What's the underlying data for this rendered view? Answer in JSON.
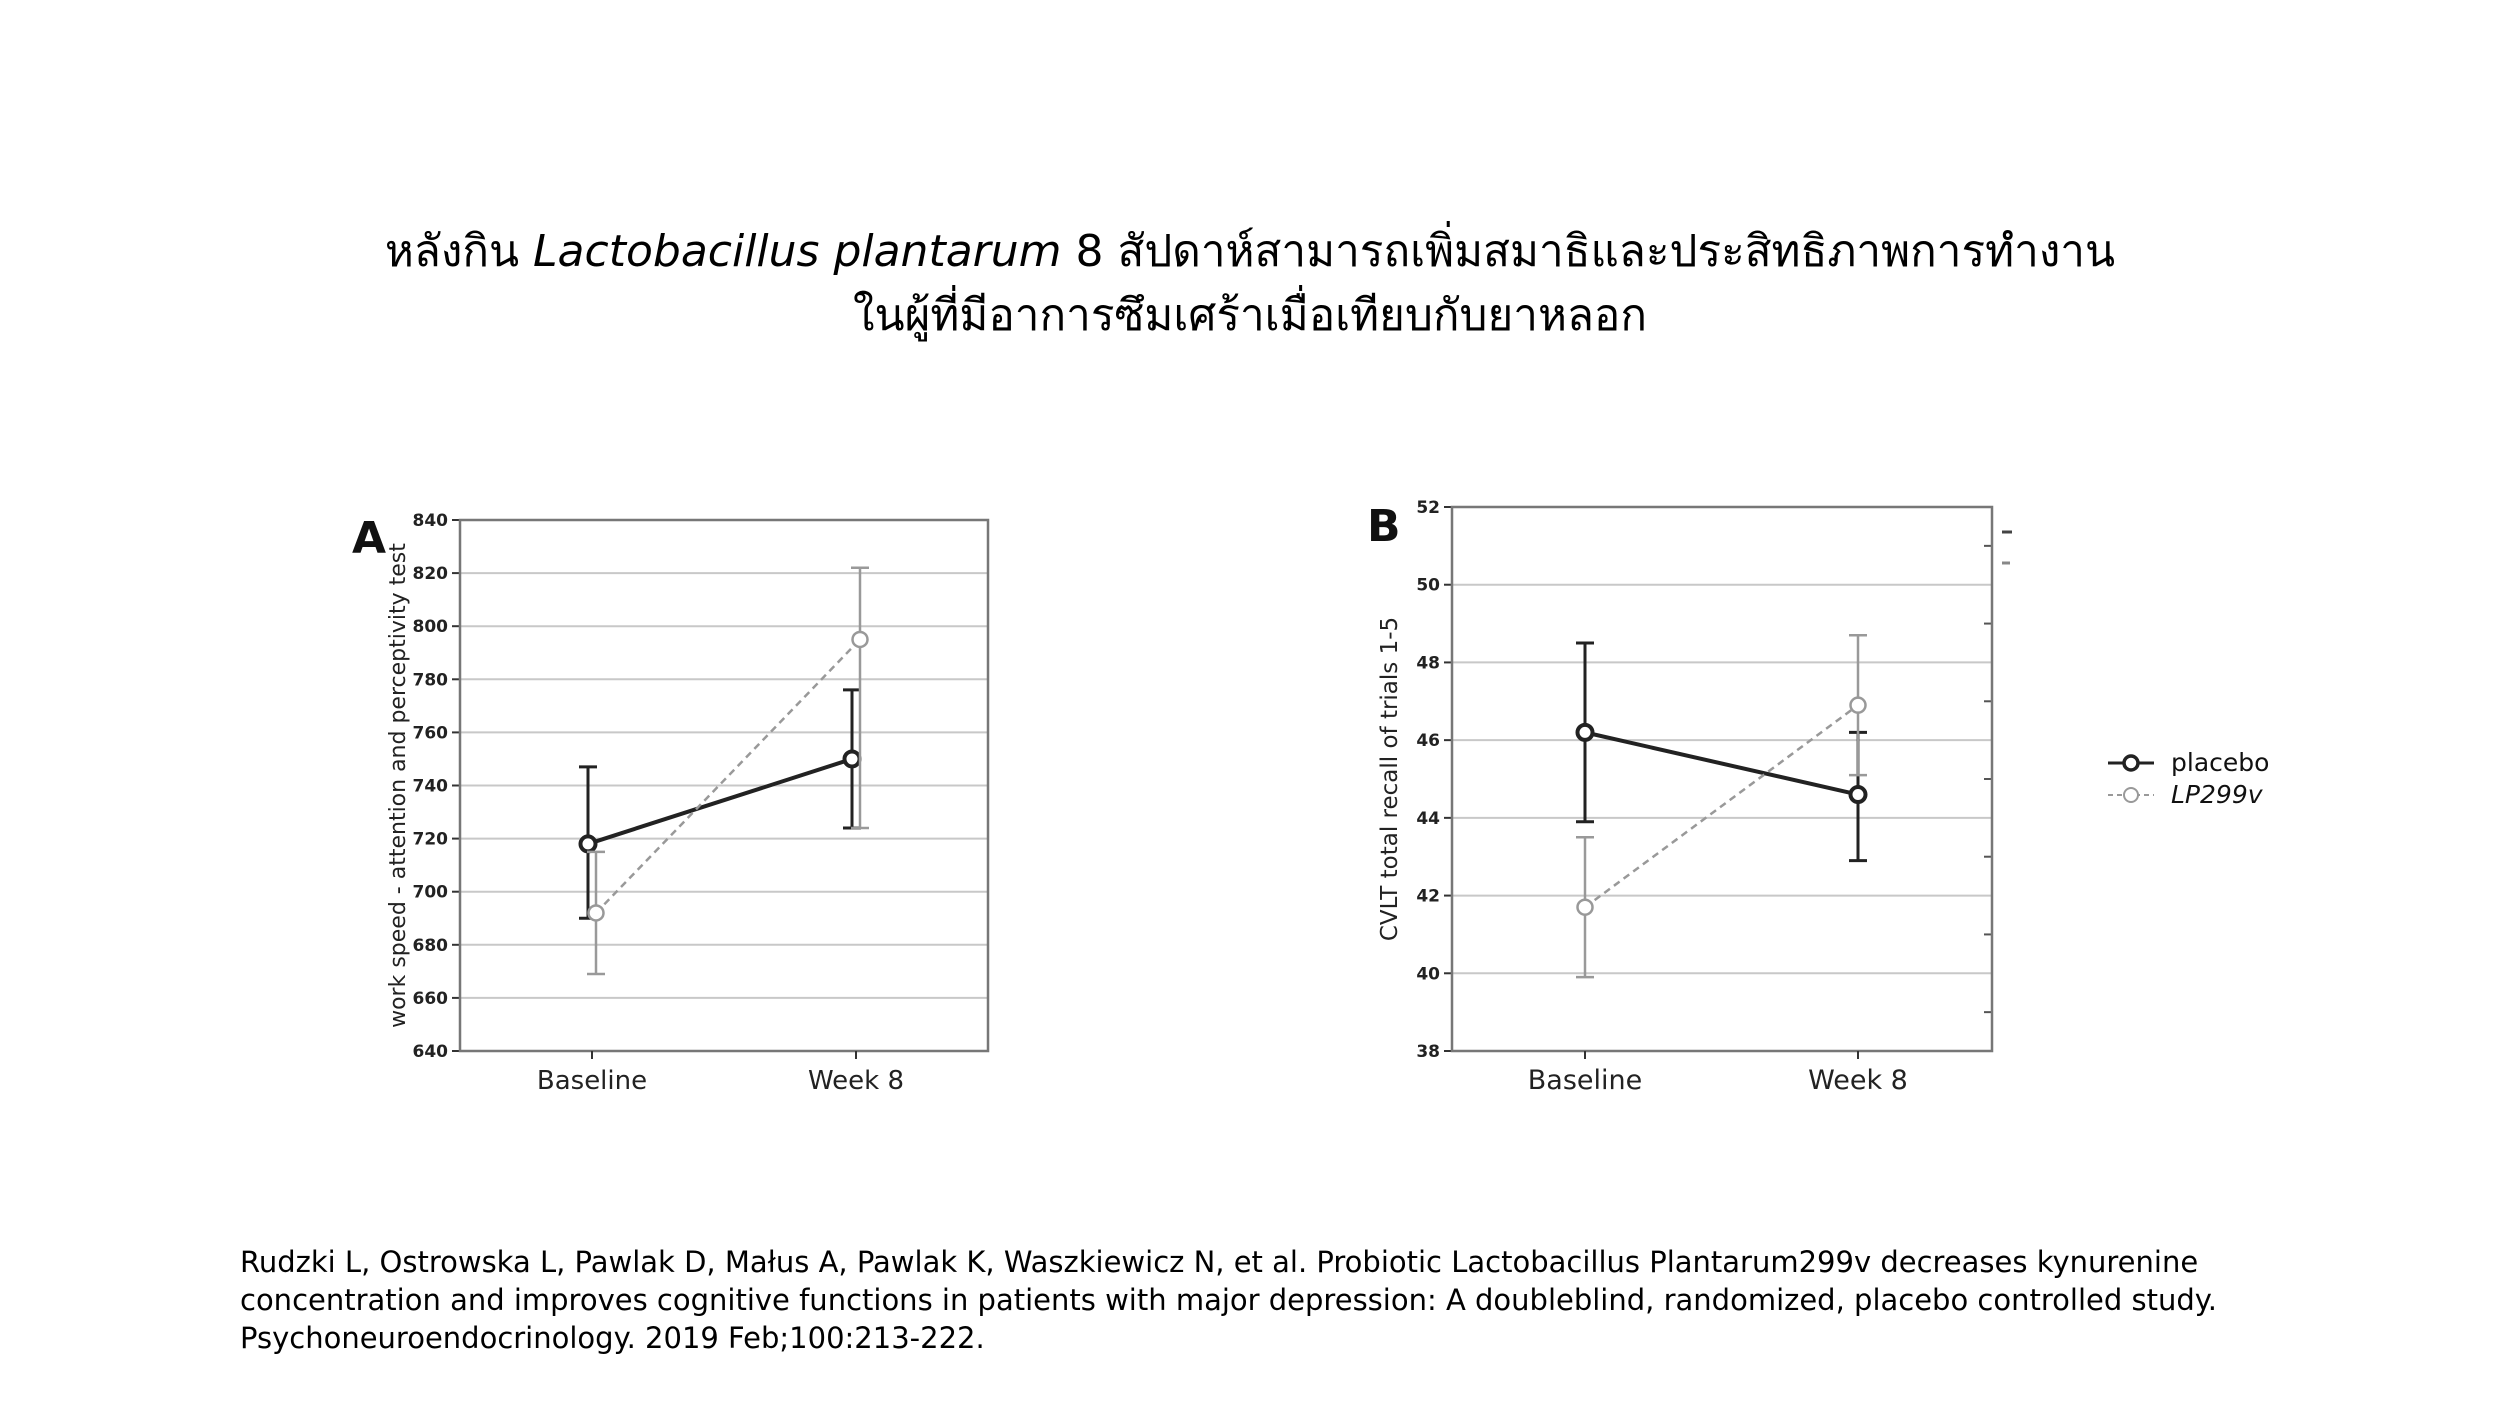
{
  "title": {
    "part1": "หลังกิน ",
    "species": "Lactobacillus plantarum",
    "part2": " 8 สัปดาห์สามารถเพิ่มสมาธิและประสิทธิภาพการทำงาน",
    "line2": "ในผู้ที่มีอาการซึมเศร้าเมื่อเทียบกับยาหลอก"
  },
  "reference": {
    "line1": "Rudzki L, Ostrowska L, Pawlak D, Małus A, Pawlak K, Waszkiewicz N,   et al. Probiotic Lactobacillus Plantarum299v decreases kynurenine",
    "line2": "concentration and improves cognitive functions in patients with major depression: A doubleblind, randomized, placebo controlled study.",
    "line3": "Psychoneuroendocrinology. 2019 Feb;100:213-222."
  },
  "colors": {
    "placebo": "#222222",
    "lp299v": "#999999",
    "grid": "#c8c8c8",
    "frame": "#777777"
  },
  "chart_data": [
    {
      "type": "line",
      "panel": "A",
      "categories": [
        "Baseline",
        "Week 8"
      ],
      "ylabel": "work speed - attention and perceptivity test",
      "ylim": [
        640,
        840
      ],
      "yticks": [
        640,
        660,
        680,
        700,
        720,
        740,
        760,
        780,
        800,
        820,
        840
      ],
      "grid": true,
      "series": [
        {
          "name": "placebo",
          "style": "solid",
          "values": [
            718,
            750
          ],
          "err_low": [
            690,
            724
          ],
          "err_high": [
            747,
            776
          ]
        },
        {
          "name": "LP299v",
          "style": "dashed",
          "values": [
            692,
            795
          ],
          "err_low": [
            669,
            724
          ],
          "err_high": [
            715,
            822
          ]
        }
      ]
    },
    {
      "type": "line",
      "panel": "B",
      "categories": [
        "Baseline",
        "Week 8"
      ],
      "ylabel": "CVLT total recall of trials 1-5",
      "ylim": [
        38,
        52
      ],
      "yticks": [
        38,
        40,
        42,
        44,
        46,
        48,
        50,
        52
      ],
      "grid": true,
      "series": [
        {
          "name": "placebo",
          "style": "solid",
          "values": [
            46.2,
            44.6
          ],
          "err_low": [
            43.9,
            42.9
          ],
          "err_high": [
            48.5,
            46.2
          ]
        },
        {
          "name": "LP299v",
          "style": "dashed",
          "values": [
            41.7,
            46.9
          ],
          "err_low": [
            39.9,
            45.1
          ],
          "err_high": [
            43.5,
            48.7
          ]
        }
      ],
      "legend": {
        "position": "right",
        "entries": [
          "placebo",
          "LP299v"
        ]
      }
    }
  ]
}
